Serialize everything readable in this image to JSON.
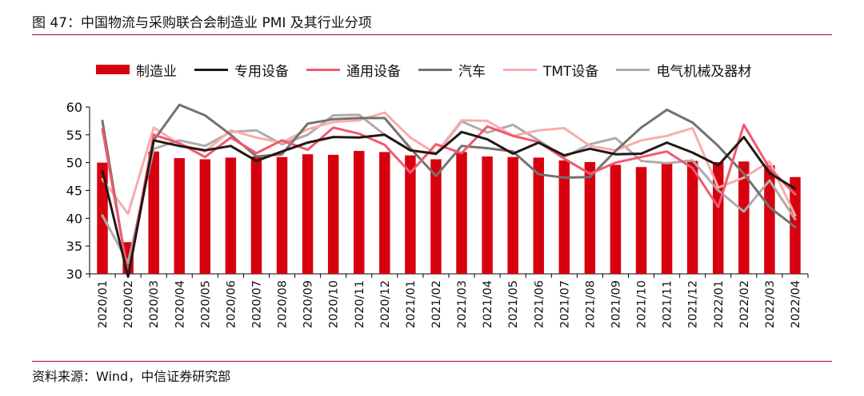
{
  "title": "图 47：中国物流与采购联合会制造业 PMI 及其行业分项",
  "source": "资料来源：Wind，中信证券研究部",
  "chart_data": {
    "type": "bar",
    "categories": [
      "2020/01",
      "2020/02",
      "2020/03",
      "2020/04",
      "2020/05",
      "2020/06",
      "2020/07",
      "2020/08",
      "2020/09",
      "2020/10",
      "2020/11",
      "2020/12",
      "2021/01",
      "2021/02",
      "2021/03",
      "2021/04",
      "2021/05",
      "2021/06",
      "2021/07",
      "2021/08",
      "2021/09",
      "2021/10",
      "2021/11",
      "2021/12",
      "2022/01",
      "2022/02",
      "2022/03",
      "2022/04"
    ],
    "ylim": [
      30,
      60
    ],
    "yticks": [
      30,
      35,
      40,
      45,
      50,
      55,
      60
    ],
    "grid": false,
    "legend_position": "top",
    "series": [
      {
        "name": "制造业",
        "kind": "bar",
        "color": "#d7000f",
        "values": [
          50.0,
          35.7,
          52.0,
          50.8,
          50.6,
          50.9,
          51.1,
          51.0,
          51.5,
          51.4,
          52.1,
          51.9,
          51.3,
          50.6,
          51.9,
          51.1,
          51.0,
          50.9,
          50.4,
          50.1,
          49.6,
          49.2,
          50.1,
          50.3,
          50.1,
          50.2,
          49.5,
          47.4
        ]
      },
      {
        "name": "专用设备",
        "kind": "line",
        "color": "#231815",
        "values": [
          48.5,
          29.5,
          54.0,
          53.0,
          52.2,
          53.0,
          50.3,
          52.0,
          53.6,
          54.6,
          54.5,
          55.0,
          52.2,
          51.6,
          55.5,
          54.2,
          51.6,
          53.6,
          51.3,
          52.5,
          51.5,
          51.6,
          53.6,
          51.8,
          49.5,
          54.6,
          48.1,
          45.3
        ]
      },
      {
        "name": "通用设备",
        "kind": "line",
        "color": "#ef5a6e",
        "values": [
          56.0,
          30.0,
          55.0,
          53.5,
          51.0,
          54.5,
          51.7,
          54.0,
          52.3,
          56.3,
          55.2,
          53.2,
          48.2,
          53.3,
          51.7,
          56.5,
          54.8,
          53.7,
          50.7,
          48.0,
          50.0,
          51.0,
          52.0,
          49.0,
          42.0,
          56.8,
          49.0,
          44.3
        ]
      },
      {
        "name": "汽车",
        "kind": "line",
        "color": "#767171",
        "values": [
          57.5,
          29.5,
          54.0,
          60.4,
          58.5,
          55.0,
          51.1,
          51.5,
          57.0,
          57.8,
          58.0,
          58.0,
          52.6,
          47.6,
          53.0,
          52.6,
          52.0,
          47.9,
          47.3,
          47.4,
          52.1,
          56.3,
          59.5,
          57.2,
          53.0,
          48.0,
          42.0,
          38.4
        ]
      },
      {
        "name": "TMT设备",
        "kind": "line",
        "color": "#f8acac",
        "values": [
          47.0,
          40.8,
          56.3,
          53.3,
          52.0,
          55.8,
          54.5,
          53.6,
          56.0,
          57.3,
          57.6,
          59.0,
          54.5,
          51.6,
          57.6,
          57.5,
          54.8,
          55.8,
          56.2,
          53.0,
          52.2,
          54.0,
          54.8,
          56.2,
          45.5,
          47.3,
          50.2,
          40.5
        ]
      },
      {
        "name": "电气机械及器材",
        "kind": "line",
        "color": "#afabab",
        "values": [
          40.5,
          32.0,
          52.5,
          54.0,
          53.0,
          55.5,
          55.8,
          53.3,
          55.0,
          58.5,
          58.6,
          55.0,
          52.2,
          51.5,
          57.4,
          55.4,
          56.8,
          54.0,
          51.0,
          53.3,
          54.4,
          50.3,
          49.9,
          50.4,
          45.0,
          41.2,
          46.8,
          39.8
        ]
      }
    ]
  }
}
